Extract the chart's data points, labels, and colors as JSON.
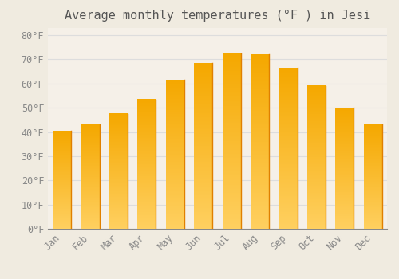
{
  "title": "Average monthly temperatures (°F ) in Jesi",
  "months": [
    "Jan",
    "Feb",
    "Mar",
    "Apr",
    "May",
    "Jun",
    "Jul",
    "Aug",
    "Sep",
    "Oct",
    "Nov",
    "Dec"
  ],
  "values": [
    40.5,
    43.0,
    47.5,
    53.5,
    61.5,
    68.5,
    72.5,
    72.0,
    66.5,
    59.0,
    50.0,
    43.0
  ],
  "bar_color_top": "#F5A800",
  "bar_color_bottom": "#FFD060",
  "background_color": "#F0EBE0",
  "plot_bg_color": "#F5F0E8",
  "grid_color": "#DDDDDD",
  "yticks": [
    0,
    10,
    20,
    30,
    40,
    50,
    60,
    70,
    80
  ],
  "ylim": [
    0,
    83
  ],
  "ylabel_suffix": "°F",
  "title_fontsize": 11,
  "tick_fontsize": 8.5
}
